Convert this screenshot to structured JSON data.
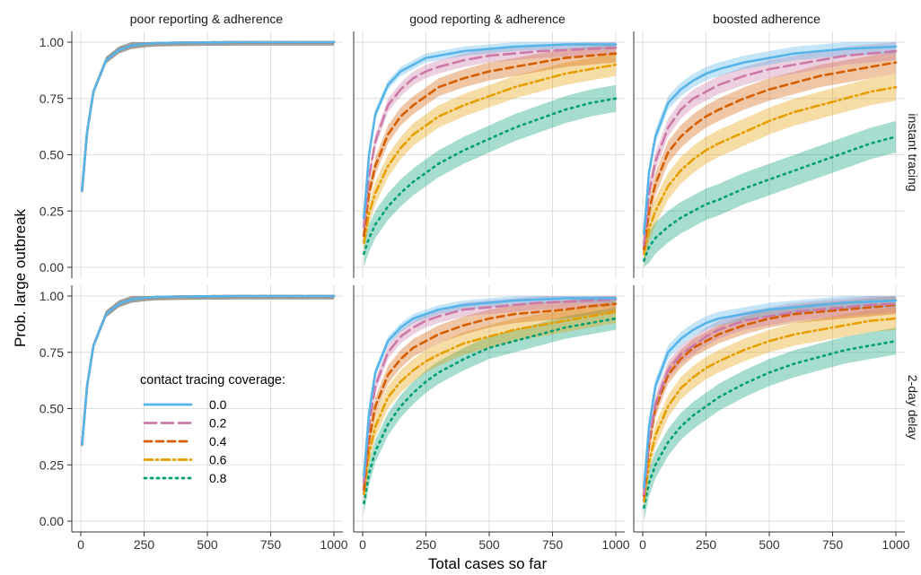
{
  "chart_data": {
    "type": "line",
    "xlabel": "Total cases so far",
    "ylabel": "Prob. large outbreak",
    "xlim": [
      0,
      1000
    ],
    "ylim": [
      0,
      1
    ],
    "x_ticks": [
      "0",
      "250",
      "500",
      "750",
      "1000"
    ],
    "y_ticks": [
      "0.00",
      "0.25",
      "0.50",
      "0.75",
      "1.00"
    ],
    "column_facets": [
      "poor reporting & adherence",
      "good reporting & adherence",
      "boosted adherence"
    ],
    "row_facets": [
      "instant tracing",
      "2-day delay"
    ],
    "grid": true,
    "legend": {
      "title": "contact tracing coverage:",
      "position": "inside-bottom-left-of-first-column",
      "entries": [
        {
          "label": "0.0",
          "color": "#56B4E9",
          "dash": "solid"
        },
        {
          "label": "0.2",
          "color": "#CC79A7",
          "dash": "longdash"
        },
        {
          "label": "0.4",
          "color": "#D55E00",
          "dash": "dashed"
        },
        {
          "label": "0.6",
          "color": "#E69F00",
          "dash": "dotdash"
        },
        {
          "label": "0.8",
          "color": "#009E73",
          "dash": "dotted"
        }
      ]
    },
    "x": [
      5,
      25,
      50,
      100,
      150,
      200,
      250,
      300,
      400,
      500,
      600,
      700,
      800,
      900,
      1000
    ],
    "panels": [
      {
        "col": 0,
        "row": 0,
        "series": [
          {
            "name": "0.0",
            "values": [
              0.34,
              0.6,
              0.78,
              0.92,
              0.965,
              0.985,
              0.992,
              0.996,
              0.998,
              0.999,
              1.0,
              1.0,
              1.0,
              1.0,
              1.0
            ],
            "band": 0.015
          },
          {
            "name": "0.2",
            "values": [
              0.34,
              0.6,
              0.78,
              0.92,
              0.965,
              0.985,
              0.992,
              0.996,
              0.998,
              0.999,
              1.0,
              1.0,
              1.0,
              1.0,
              1.0
            ],
            "band": 0.015
          },
          {
            "name": "0.4",
            "values": [
              0.34,
              0.6,
              0.78,
              0.92,
              0.965,
              0.985,
              0.992,
              0.996,
              0.998,
              0.999,
              1.0,
              1.0,
              1.0,
              1.0,
              1.0
            ],
            "band": 0.015
          },
          {
            "name": "0.6",
            "values": [
              0.34,
              0.6,
              0.78,
              0.92,
              0.965,
              0.985,
              0.992,
              0.996,
              0.998,
              0.999,
              1.0,
              1.0,
              1.0,
              1.0,
              1.0
            ],
            "band": 0.015
          },
          {
            "name": "0.8",
            "values": [
              0.34,
              0.6,
              0.78,
              0.92,
              0.965,
              0.985,
              0.992,
              0.996,
              0.998,
              0.999,
              1.0,
              1.0,
              1.0,
              1.0,
              1.0
            ],
            "band": 0.015
          }
        ]
      },
      {
        "col": 1,
        "row": 0,
        "series": [
          {
            "name": "0.0",
            "values": [
              0.22,
              0.5,
              0.68,
              0.81,
              0.87,
              0.9,
              0.93,
              0.94,
              0.96,
              0.97,
              0.98,
              0.985,
              0.99,
              0.99,
              0.99
            ],
            "band": 0.02
          },
          {
            "name": "0.2",
            "values": [
              0.18,
              0.4,
              0.56,
              0.72,
              0.79,
              0.84,
              0.87,
              0.89,
              0.92,
              0.94,
              0.95,
              0.96,
              0.965,
              0.97,
              0.975
            ],
            "band": 0.03
          },
          {
            "name": "0.4",
            "values": [
              0.14,
              0.33,
              0.45,
              0.59,
              0.67,
              0.72,
              0.76,
              0.8,
              0.84,
              0.87,
              0.89,
              0.91,
              0.93,
              0.94,
              0.95
            ],
            "band": 0.04
          },
          {
            "name": "0.6",
            "values": [
              0.11,
              0.24,
              0.33,
              0.45,
              0.53,
              0.59,
              0.63,
              0.67,
              0.72,
              0.76,
              0.8,
              0.83,
              0.86,
              0.88,
              0.9
            ],
            "band": 0.05
          },
          {
            "name": "0.8",
            "values": [
              0.06,
              0.13,
              0.19,
              0.27,
              0.33,
              0.38,
              0.42,
              0.46,
              0.52,
              0.57,
              0.62,
              0.66,
              0.7,
              0.73,
              0.75
            ],
            "band": 0.06
          }
        ]
      },
      {
        "col": 2,
        "row": 0,
        "series": [
          {
            "name": "0.0",
            "values": [
              0.15,
              0.42,
              0.58,
              0.73,
              0.79,
              0.83,
              0.86,
              0.88,
              0.91,
              0.93,
              0.95,
              0.96,
              0.97,
              0.975,
              0.98
            ],
            "band": 0.03
          },
          {
            "name": "0.2",
            "values": [
              0.1,
              0.33,
              0.47,
              0.62,
              0.7,
              0.75,
              0.78,
              0.81,
              0.85,
              0.88,
              0.9,
              0.92,
              0.94,
              0.95,
              0.96
            ],
            "band": 0.04
          },
          {
            "name": "0.4",
            "values": [
              0.08,
              0.25,
              0.37,
              0.51,
              0.58,
              0.63,
              0.67,
              0.7,
              0.75,
              0.79,
              0.82,
              0.85,
              0.87,
              0.89,
              0.91
            ],
            "band": 0.05
          },
          {
            "name": "0.6",
            "values": [
              0.06,
              0.17,
              0.25,
              0.36,
              0.43,
              0.48,
              0.52,
              0.55,
              0.6,
              0.65,
              0.69,
              0.72,
              0.75,
              0.78,
              0.8
            ],
            "band": 0.06
          },
          {
            "name": "0.8",
            "values": [
              0.03,
              0.09,
              0.13,
              0.18,
              0.22,
              0.25,
              0.28,
              0.3,
              0.35,
              0.39,
              0.43,
              0.47,
              0.51,
              0.55,
              0.58
            ],
            "band": 0.07
          }
        ]
      },
      {
        "col": 0,
        "row": 1,
        "series": [
          {
            "name": "0.0",
            "values": [
              0.34,
              0.6,
              0.78,
              0.92,
              0.965,
              0.985,
              0.992,
              0.996,
              0.998,
              0.999,
              1.0,
              1.0,
              1.0,
              1.0,
              1.0
            ],
            "band": 0.015
          },
          {
            "name": "0.2",
            "values": [
              0.34,
              0.6,
              0.78,
              0.92,
              0.965,
              0.985,
              0.992,
              0.996,
              0.998,
              0.999,
              1.0,
              1.0,
              1.0,
              1.0,
              1.0
            ],
            "band": 0.015
          },
          {
            "name": "0.4",
            "values": [
              0.34,
              0.6,
              0.78,
              0.92,
              0.965,
              0.985,
              0.992,
              0.996,
              0.998,
              0.999,
              1.0,
              1.0,
              1.0,
              1.0,
              1.0
            ],
            "band": 0.015
          },
          {
            "name": "0.6",
            "values": [
              0.34,
              0.6,
              0.78,
              0.92,
              0.965,
              0.985,
              0.992,
              0.996,
              0.998,
              0.999,
              1.0,
              1.0,
              1.0,
              1.0,
              1.0
            ],
            "band": 0.015
          },
          {
            "name": "0.8",
            "values": [
              0.34,
              0.6,
              0.78,
              0.92,
              0.965,
              0.985,
              0.992,
              0.996,
              0.998,
              0.999,
              1.0,
              1.0,
              1.0,
              1.0,
              1.0
            ],
            "band": 0.015
          }
        ]
      },
      {
        "col": 1,
        "row": 1,
        "series": [
          {
            "name": "0.0",
            "values": [
              0.2,
              0.48,
              0.66,
              0.8,
              0.86,
              0.9,
              0.92,
              0.94,
              0.96,
              0.97,
              0.98,
              0.985,
              0.99,
              0.99,
              0.99
            ],
            "band": 0.02
          },
          {
            "name": "0.2",
            "values": [
              0.17,
              0.42,
              0.6,
              0.75,
              0.82,
              0.86,
              0.89,
              0.91,
              0.94,
              0.95,
              0.96,
              0.97,
              0.975,
              0.98,
              0.985
            ],
            "band": 0.03
          },
          {
            "name": "0.4",
            "values": [
              0.14,
              0.36,
              0.51,
              0.65,
              0.72,
              0.77,
              0.8,
              0.83,
              0.87,
              0.9,
              0.92,
              0.93,
              0.94,
              0.955,
              0.965
            ],
            "band": 0.04
          },
          {
            "name": "0.6",
            "values": [
              0.12,
              0.3,
              0.42,
              0.55,
              0.62,
              0.67,
              0.71,
              0.74,
              0.79,
              0.82,
              0.85,
              0.87,
              0.89,
              0.91,
              0.93
            ],
            "band": 0.05
          },
          {
            "name": "0.8",
            "values": [
              0.08,
              0.21,
              0.31,
              0.43,
              0.51,
              0.57,
              0.62,
              0.66,
              0.72,
              0.77,
              0.8,
              0.83,
              0.86,
              0.88,
              0.9
            ],
            "band": 0.05
          }
        ]
      },
      {
        "col": 2,
        "row": 1,
        "series": [
          {
            "name": "0.0",
            "values": [
              0.15,
              0.42,
              0.6,
              0.75,
              0.81,
              0.85,
              0.88,
              0.9,
              0.92,
              0.94,
              0.95,
              0.96,
              0.97,
              0.975,
              0.98
            ],
            "band": 0.03
          },
          {
            "name": "0.2",
            "values": [
              0.12,
              0.36,
              0.52,
              0.67,
              0.74,
              0.78,
              0.82,
              0.85,
              0.89,
              0.91,
              0.93,
              0.94,
              0.95,
              0.96,
              0.965
            ],
            "band": 0.04
          },
          {
            "name": "0.4",
            "values": [
              0.11,
              0.34,
              0.5,
              0.65,
              0.72,
              0.77,
              0.8,
              0.83,
              0.87,
              0.9,
              0.92,
              0.93,
              0.94,
              0.95,
              0.96
            ],
            "band": 0.04
          },
          {
            "name": "0.6",
            "values": [
              0.09,
              0.26,
              0.38,
              0.51,
              0.59,
              0.64,
              0.68,
              0.71,
              0.76,
              0.8,
              0.83,
              0.85,
              0.87,
              0.89,
              0.9
            ],
            "band": 0.05
          },
          {
            "name": "0.8",
            "values": [
              0.06,
              0.17,
              0.25,
              0.35,
              0.42,
              0.47,
              0.51,
              0.55,
              0.61,
              0.66,
              0.7,
              0.73,
              0.76,
              0.78,
              0.8
            ],
            "band": 0.06
          }
        ]
      }
    ]
  }
}
